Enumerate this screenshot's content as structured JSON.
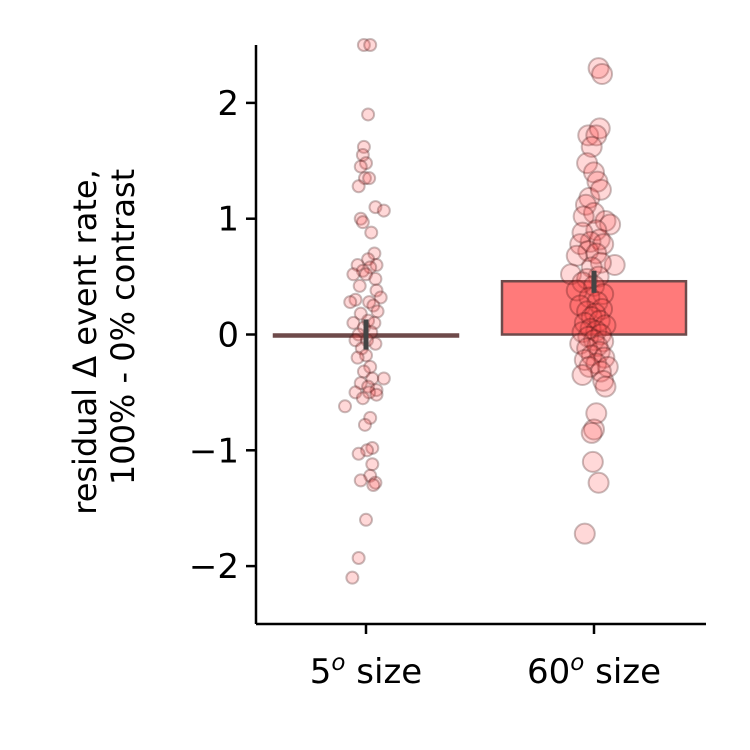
{
  "chart_data": {
    "type": "bar",
    "title": "",
    "xlabel": "",
    "ylabel_lines": [
      "residual Δ event rate,",
      "100% - 0% contrast"
    ],
    "categories": [
      {
        "base": "5",
        "sup": "o",
        "rest": " size"
      },
      {
        "base": "60",
        "sup": "o",
        "rest": " size"
      }
    ],
    "values": [
      0.0,
      0.46
    ],
    "error_bars": [
      [
        -0.13,
        0.13
      ],
      [
        0.36,
        0.55
      ]
    ],
    "ylim": [
      -2.5,
      2.5
    ],
    "yticks": [
      -2,
      -1,
      0,
      1,
      2
    ],
    "ytick_labels": [
      "−2",
      "−1",
      "0",
      "1",
      "2"
    ],
    "grid": false,
    "legend": "none",
    "colors": {
      "bar_fill": "#ff7a7a",
      "bar_edge": "#6e4a4a",
      "point_fill": "#ff4d4d",
      "point_edge": "#3a0f0f",
      "error_bar": "#444444",
      "axis": "#000000"
    },
    "points": [
      [
        [
          -0.02,
          2.5
        ],
        [
          0.04,
          2.5
        ],
        [
          0.02,
          1.9
        ],
        [
          -0.02,
          1.62
        ],
        [
          -0.03,
          1.55
        ],
        [
          0.0,
          1.48
        ],
        [
          -0.05,
          1.45
        ],
        [
          -0.01,
          1.35
        ],
        [
          0.03,
          1.35
        ],
        [
          -0.07,
          1.28
        ],
        [
          0.09,
          1.1
        ],
        [
          0.17,
          1.07
        ],
        [
          -0.05,
          1.0
        ],
        [
          -0.03,
          0.97
        ],
        [
          0.05,
          0.88
        ],
        [
          0.08,
          0.7
        ],
        [
          0.02,
          0.65
        ],
        [
          0.1,
          0.6
        ],
        [
          -0.08,
          0.6
        ],
        [
          0.04,
          0.58
        ],
        [
          -0.03,
          0.55
        ],
        [
          0.0,
          0.52
        ],
        [
          -0.12,
          0.52
        ],
        [
          0.09,
          0.48
        ],
        [
          -0.06,
          0.42
        ],
        [
          0.1,
          0.38
        ],
        [
          0.14,
          0.32
        ],
        [
          -0.1,
          0.3
        ],
        [
          0.03,
          0.28
        ],
        [
          -0.15,
          0.28
        ],
        [
          0.07,
          0.25
        ],
        [
          0.11,
          0.2
        ],
        [
          -0.05,
          0.18
        ],
        [
          0.02,
          0.12
        ],
        [
          -0.12,
          0.1
        ],
        [
          0.08,
          0.1
        ],
        [
          -0.02,
          0.06
        ],
        [
          0.05,
          0.02
        ],
        [
          -0.07,
          0.0
        ],
        [
          0.01,
          -0.05
        ],
        [
          -0.1,
          -0.05
        ],
        [
          0.09,
          -0.08
        ],
        [
          -0.04,
          -0.12
        ],
        [
          0.0,
          -0.18
        ],
        [
          -0.08,
          -0.2
        ],
        [
          0.04,
          -0.28
        ],
        [
          -0.02,
          -0.32
        ],
        [
          0.06,
          -0.38
        ],
        [
          0.17,
          -0.38
        ],
        [
          -0.05,
          -0.42
        ],
        [
          0.02,
          -0.45
        ],
        [
          0.1,
          -0.48
        ],
        [
          -0.1,
          -0.5
        ],
        [
          0.03,
          -0.5
        ],
        [
          -0.03,
          -0.55
        ],
        [
          0.1,
          -0.52
        ],
        [
          -0.2,
          -0.62
        ],
        [
          0.04,
          -0.72
        ],
        [
          -0.01,
          -0.78
        ],
        [
          0.06,
          -0.98
        ],
        [
          0.01,
          -1.0
        ],
        [
          -0.07,
          -1.03
        ],
        [
          0.06,
          -1.12
        ],
        [
          0.04,
          -1.22
        ],
        [
          -0.05,
          -1.26
        ],
        [
          0.09,
          -1.28
        ],
        [
          0.07,
          -1.3
        ],
        [
          0.0,
          -1.6
        ],
        [
          -0.07,
          -1.93
        ],
        [
          -0.13,
          -2.1
        ]
      ],
      [
        [
          0.04,
          2.3
        ],
        [
          0.07,
          2.25
        ],
        [
          -0.05,
          1.72
        ],
        [
          0.05,
          1.78
        ],
        [
          0.02,
          1.72
        ],
        [
          -0.02,
          1.62
        ],
        [
          -0.06,
          1.48
        ],
        [
          0.0,
          1.4
        ],
        [
          0.03,
          1.32
        ],
        [
          -0.04,
          1.18
        ],
        [
          0.06,
          1.25
        ],
        [
          -0.07,
          1.12
        ],
        [
          0.0,
          1.05
        ],
        [
          -0.09,
          1.02
        ],
        [
          0.1,
          0.98
        ],
        [
          0.14,
          0.95
        ],
        [
          0.02,
          0.9
        ],
        [
          -0.1,
          0.88
        ],
        [
          0.05,
          0.82
        ],
        [
          -0.03,
          0.8
        ],
        [
          0.08,
          0.78
        ],
        [
          -0.12,
          0.78
        ],
        [
          -0.05,
          0.72
        ],
        [
          0.02,
          0.7
        ],
        [
          -0.15,
          0.68
        ],
        [
          0.18,
          0.6
        ],
        [
          0.06,
          0.62
        ],
        [
          -0.02,
          0.58
        ],
        [
          -0.2,
          0.52
        ],
        [
          0.04,
          0.5
        ],
        [
          -0.06,
          0.48
        ],
        [
          -0.1,
          0.45
        ],
        [
          0.0,
          0.42
        ],
        [
          -0.15,
          0.38
        ],
        [
          0.08,
          0.35
        ],
        [
          -0.04,
          0.32
        ],
        [
          0.03,
          0.28
        ],
        [
          -0.12,
          0.25
        ],
        [
          0.07,
          0.22
        ],
        [
          -0.06,
          0.2
        ],
        [
          0.01,
          0.18
        ],
        [
          -0.02,
          0.15
        ],
        [
          0.05,
          0.12
        ],
        [
          -0.08,
          0.1
        ],
        [
          0.1,
          0.08
        ],
        [
          -0.03,
          0.05
        ],
        [
          0.02,
          0.03
        ],
        [
          -0.1,
          0.02
        ],
        [
          0.06,
          0.0
        ],
        [
          -0.05,
          -0.02
        ],
        [
          0.0,
          -0.05
        ],
        [
          0.08,
          -0.06
        ],
        [
          -0.12,
          -0.08
        ],
        [
          0.03,
          -0.1
        ],
        [
          -0.06,
          -0.12
        ],
        [
          0.05,
          -0.15
        ],
        [
          -0.02,
          -0.18
        ],
        [
          0.09,
          -0.2
        ],
        [
          -0.08,
          -0.22
        ],
        [
          0.02,
          -0.25
        ],
        [
          0.12,
          -0.28
        ],
        [
          -0.04,
          -0.28
        ],
        [
          0.06,
          -0.32
        ],
        [
          -0.1,
          -0.35
        ],
        [
          0.08,
          -0.4
        ],
        [
          0.1,
          -0.45
        ],
        [
          0.02,
          -0.68
        ],
        [
          0.0,
          -0.82
        ],
        [
          -0.02,
          -0.85
        ],
        [
          -0.01,
          -1.1
        ],
        [
          0.04,
          -1.28
        ],
        [
          -0.08,
          -1.72
        ]
      ]
    ]
  }
}
